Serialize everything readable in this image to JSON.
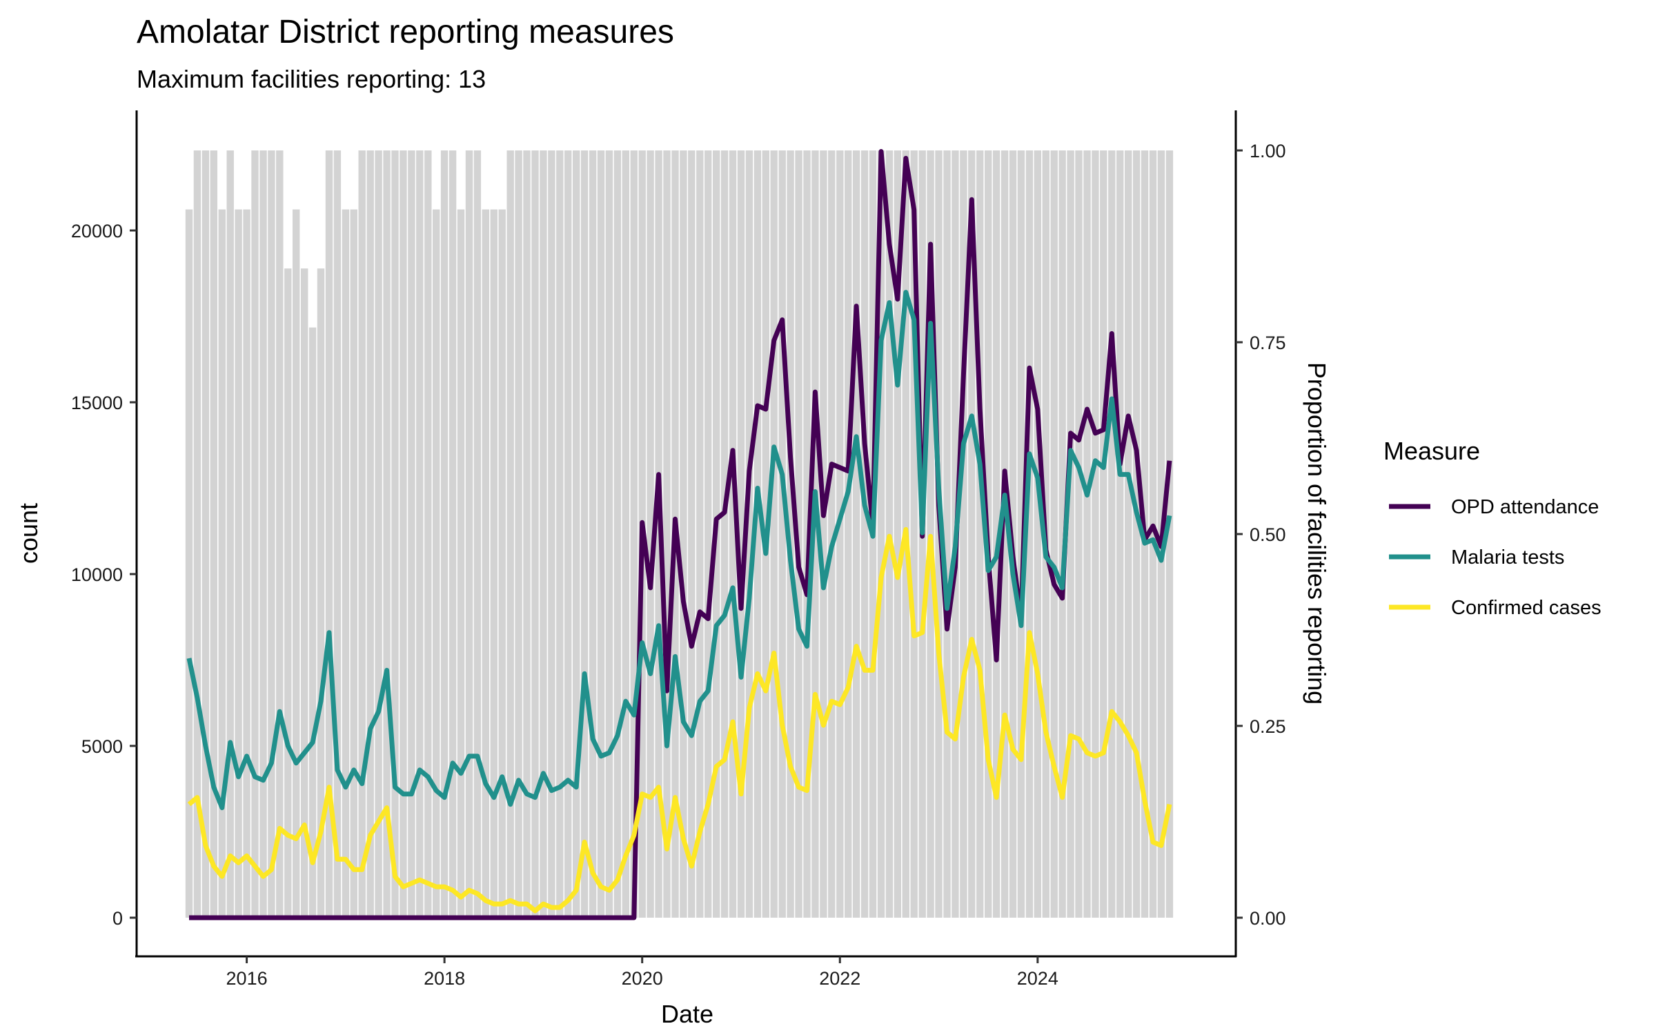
{
  "chart_data": {
    "type": "line",
    "title": "Amolatar District reporting measures",
    "subtitle": "Maximum facilities reporting: 13",
    "xlabel": "Date",
    "ylabel": "count",
    "y2label": "Proportion of facilities reporting",
    "x_start": "2015-06",
    "x_end": "2025-05",
    "x_ticks": [
      "2016",
      "2018",
      "2020",
      "2022",
      "2024"
    ],
    "ylim": [
      -2000,
      23200
    ],
    "y_ticks": [
      0,
      5000,
      10000,
      15000,
      20000
    ],
    "y_tick_labels": [
      "0",
      "5000",
      "10000",
      "15000",
      "20000"
    ],
    "y2lim": [
      0,
      1
    ],
    "y2_ticks": [
      0,
      0.25,
      0.5,
      0.75,
      1
    ],
    "y2_tick_labels": [
      "0.00",
      "0.25",
      "0.50",
      "0.75",
      "1.00"
    ],
    "grid": false,
    "legend": {
      "title": "Measure",
      "position": "right"
    },
    "reporting": {
      "name": "Proportion of facilities reporting",
      "color": "#d3d3d3",
      "max_facilities": 13,
      "facilities": [
        12,
        13,
        13,
        13,
        12,
        13,
        12,
        12,
        13,
        13,
        13,
        13,
        11,
        12,
        11,
        10,
        11,
        13,
        13,
        12,
        12,
        13,
        13,
        13,
        13,
        13,
        13,
        13,
        13,
        13,
        12,
        13,
        13,
        12,
        13,
        13,
        12,
        12,
        12,
        13,
        13,
        13,
        13,
        13,
        13,
        13,
        13,
        13,
        13,
        13,
        13,
        13,
        13,
        13,
        13,
        13,
        13,
        13,
        13,
        13,
        13,
        13,
        13,
        13,
        13,
        13,
        13,
        13,
        13,
        13,
        13,
        13,
        13,
        13,
        13,
        13,
        13,
        13,
        13,
        13,
        13,
        13,
        13,
        13,
        13,
        13,
        13,
        13,
        13,
        13,
        13,
        13,
        13,
        13,
        13,
        13,
        13,
        13,
        13,
        13,
        13,
        13,
        13,
        13,
        13,
        13,
        13,
        13,
        13,
        13,
        13,
        13,
        13,
        13,
        13,
        13,
        13,
        13,
        13,
        13
      ]
    },
    "series": [
      {
        "name": "OPD attendance",
        "color": "#440154",
        "values": [
          0,
          0,
          0,
          0,
          0,
          0,
          0,
          0,
          0,
          0,
          0,
          0,
          0,
          0,
          0,
          0,
          0,
          0,
          0,
          0,
          0,
          0,
          0,
          0,
          0,
          0,
          0,
          0,
          0,
          0,
          0,
          0,
          0,
          0,
          0,
          0,
          0,
          0,
          0,
          0,
          0,
          0,
          0,
          0,
          0,
          0,
          0,
          0,
          0,
          0,
          0,
          0,
          0,
          0,
          0,
          11500,
          9600,
          12900,
          6600,
          11600,
          9200,
          7900,
          8900,
          8700,
          11600,
          11800,
          13600,
          9000,
          13000,
          14900,
          14800,
          16800,
          17400,
          13400,
          10200,
          9400,
          15300,
          11700,
          13200,
          13100,
          13000,
          17800,
          13800,
          11400,
          22300,
          19600,
          18000,
          22100,
          20600,
          11100,
          19600,
          12000,
          8400,
          10200,
          15800,
          20900,
          14800,
          10500,
          7500,
          13000,
          10500,
          8700,
          16000,
          14800,
          10700,
          9700,
          9300,
          14100,
          13900,
          14800,
          14100,
          14200,
          17000,
          13200,
          14600,
          13600,
          11000,
          11400,
          10800,
          13300
        ]
      },
      {
        "name": "Malaria tests",
        "color": "#21908c",
        "values": [
          7550,
          6400,
          5000,
          3800,
          3200,
          5100,
          4100,
          4700,
          4100,
          4000,
          4500,
          6000,
          5000,
          4500,
          4800,
          5100,
          6300,
          8300,
          4300,
          3800,
          4300,
          3900,
          5500,
          6000,
          7200,
          3800,
          3600,
          3600,
          4300,
          4100,
          3700,
          3500,
          4500,
          4200,
          4700,
          4700,
          3900,
          3500,
          4100,
          3300,
          4000,
          3600,
          3500,
          4200,
          3700,
          3800,
          4000,
          3800,
          7100,
          5200,
          4700,
          4800,
          5300,
          6300,
          5900,
          8000,
          7100,
          8500,
          5000,
          7600,
          5700,
          5300,
          6300,
          6600,
          8500,
          8800,
          9600,
          7000,
          9300,
          12500,
          10600,
          13700,
          12900,
          10400,
          8400,
          7900,
          12400,
          9600,
          10800,
          11600,
          12400,
          14000,
          12000,
          11100,
          16800,
          17900,
          15500,
          18200,
          17400,
          11200,
          17300,
          12500,
          9000,
          10800,
          13800,
          14600,
          13200,
          10100,
          10500,
          12300,
          10000,
          8500,
          13500,
          12800,
          10500,
          10200,
          9600,
          13600,
          13100,
          12300,
          13300,
          13100,
          15100,
          12900,
          12900,
          11800,
          10900,
          11000,
          10400,
          11700
        ]
      },
      {
        "name": "Confirmed cases",
        "color": "#fde725",
        "values": [
          3300,
          3500,
          2100,
          1500,
          1200,
          1800,
          1600,
          1800,
          1500,
          1200,
          1400,
          2600,
          2400,
          2300,
          2700,
          1600,
          2500,
          3800,
          1700,
          1700,
          1400,
          1400,
          2400,
          2800,
          3200,
          1200,
          900,
          1000,
          1100,
          1000,
          900,
          900,
          800,
          600,
          800,
          700,
          500,
          400,
          400,
          500,
          400,
          400,
          200,
          400,
          300,
          300,
          500,
          800,
          2200,
          1300,
          900,
          800,
          1100,
          1800,
          2400,
          3600,
          3500,
          3800,
          2000,
          3500,
          2300,
          1500,
          2500,
          3300,
          4400,
          4600,
          5700,
          3600,
          6100,
          7100,
          6600,
          7700,
          5600,
          4400,
          3800,
          3700,
          6500,
          5600,
          6300,
          6200,
          6700,
          7900,
          7200,
          7200,
          9900,
          11100,
          9900,
          11300,
          8200,
          8300,
          11100,
          7700,
          5400,
          5200,
          7000,
          8100,
          7200,
          4600,
          3500,
          5900,
          4900,
          4600,
          8300,
          7100,
          5400,
          4400,
          3500,
          5300,
          5200,
          4800,
          4700,
          4800,
          6000,
          5700,
          5300,
          4800,
          3400,
          2200,
          2100,
          3300
        ]
      }
    ]
  }
}
